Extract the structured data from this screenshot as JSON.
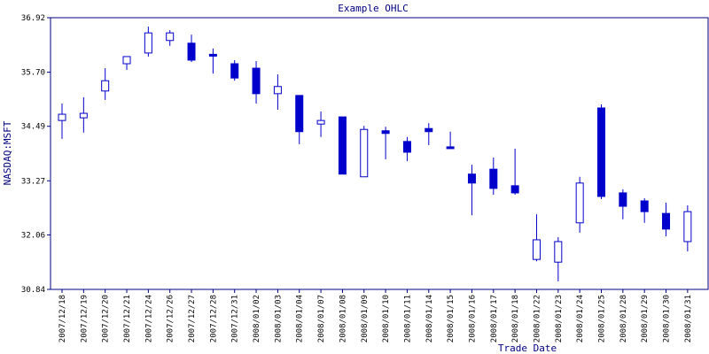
{
  "chart_data": {
    "type": "candlestick",
    "title": "Example OHLC",
    "x_label": "Trade Date",
    "y_label": "NASDAQ:MSFT",
    "categories": [
      "2007/12/18",
      "2007/12/19",
      "2007/12/20",
      "2007/12/21",
      "2007/12/24",
      "2007/12/26",
      "2007/12/27",
      "2007/12/28",
      "2007/12/31",
      "2008/01/02",
      "2008/01/03",
      "2008/01/04",
      "2008/01/07",
      "2008/01/08",
      "2008/01/09",
      "2008/01/10",
      "2008/01/11",
      "2008/01/14",
      "2008/01/15",
      "2008/01/16",
      "2008/01/17",
      "2008/01/18",
      "2008/01/22",
      "2008/01/23",
      "2008/01/24",
      "2008/01/25",
      "2008/01/28",
      "2008/01/29",
      "2008/01/30",
      "2008/01/31"
    ],
    "series": [
      {
        "name": "NASDAQ:MSFT",
        "color": "#0000cc",
        "open": [
          34.62,
          34.68,
          35.28,
          35.89,
          36.13,
          36.41,
          36.35,
          36.1,
          35.89,
          35.79,
          35.22,
          35.18,
          34.54,
          34.7,
          33.36,
          34.39,
          34.15,
          34.44,
          34.03,
          33.42,
          33.53,
          33.16,
          31.51,
          31.45,
          32.33,
          34.9,
          33.0,
          32.82,
          32.54,
          31.91
        ],
        "high": [
          35.0,
          35.14,
          35.79,
          36.05,
          36.72,
          36.64,
          36.54,
          36.23,
          35.97,
          35.95,
          35.65,
          35.18,
          34.82,
          34.7,
          34.5,
          34.48,
          34.25,
          34.56,
          34.37,
          33.63,
          33.79,
          33.99,
          32.52,
          32.01,
          33.36,
          34.98,
          33.08,
          32.88,
          32.78,
          32.72
        ],
        "low": [
          34.21,
          34.35,
          35.08,
          35.75,
          36.05,
          36.29,
          35.93,
          35.67,
          35.51,
          35.0,
          34.86,
          34.09,
          34.25,
          33.42,
          33.36,
          33.75,
          33.71,
          34.07,
          33.99,
          32.5,
          32.96,
          32.96,
          31.47,
          31.02,
          32.11,
          32.86,
          32.41,
          32.33,
          32.03,
          31.69
        ],
        "close": [
          34.76,
          34.78,
          35.51,
          36.05,
          36.58,
          36.58,
          35.97,
          36.06,
          35.57,
          35.22,
          35.38,
          34.37,
          34.62,
          33.42,
          34.42,
          34.33,
          33.91,
          34.37,
          33.99,
          33.22,
          33.1,
          33.0,
          31.95,
          31.91,
          33.22,
          32.92,
          32.7,
          32.58,
          32.19,
          32.58
        ]
      }
    ],
    "ylim": [
      30.84,
      36.92
    ],
    "yticks": [
      30.84,
      32.06,
      33.27,
      34.49,
      {
        "value": 35.7,
        "label": "35.70"
      },
      36.92
    ]
  }
}
